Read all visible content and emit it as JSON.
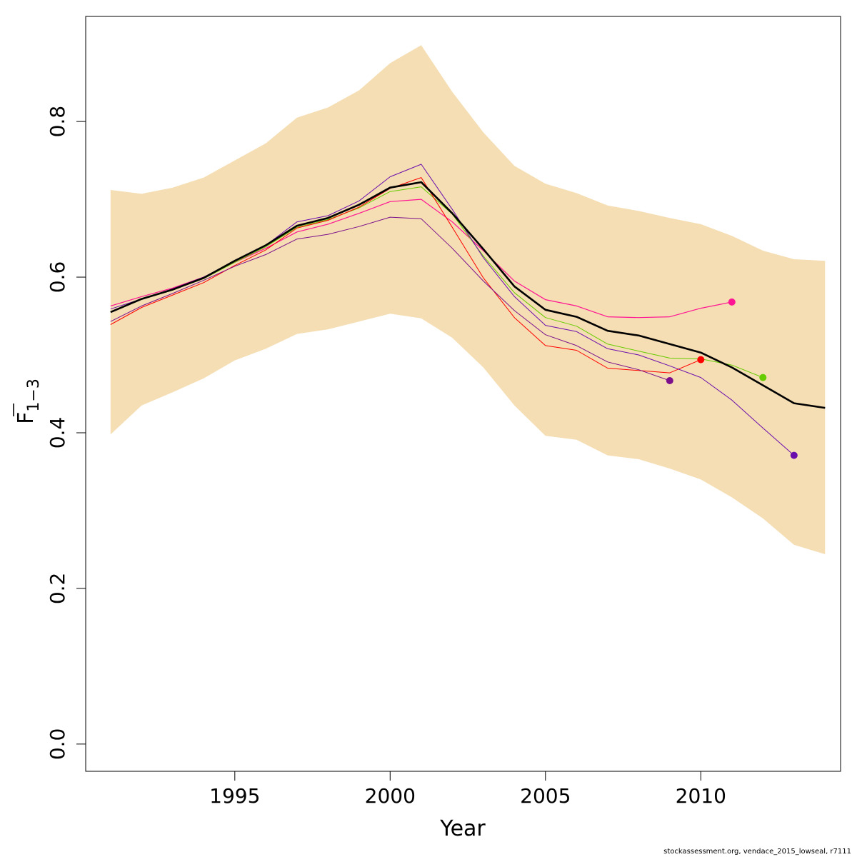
{
  "chart_data": {
    "type": "line",
    "title": "",
    "xlabel": "Year",
    "ylabel_main": "F",
    "ylabel_sub": "1−3",
    "xlim": [
      1990.2,
      2014.5
    ],
    "ylim": [
      -0.035,
      0.935
    ],
    "x_ticks": [
      1995,
      2000,
      2005,
      2010
    ],
    "x_tick_labels": [
      "1995",
      "2000",
      "2005",
      "2010"
    ],
    "y_ticks": [
      0.0,
      0.2,
      0.4,
      0.6,
      0.8
    ],
    "y_tick_labels": [
      "0.0",
      "0.2",
      "0.4",
      "0.6",
      "0.8"
    ],
    "grid": false,
    "band_color": "#f5deb3",
    "band": {
      "x": [
        1991,
        1992,
        1993,
        1994,
        1995,
        1996,
        1997,
        1998,
        1999,
        2000,
        2001,
        2002,
        2003,
        2004,
        2005,
        2006,
        2007,
        2008,
        2009,
        2010,
        2011,
        2012,
        2013,
        2014
      ],
      "lower": [
        0.398,
        0.435,
        0.452,
        0.47,
        0.493,
        0.508,
        0.527,
        0.533,
        0.543,
        0.553,
        0.547,
        0.522,
        0.484,
        0.435,
        0.396,
        0.391,
        0.371,
        0.366,
        0.354,
        0.34,
        0.317,
        0.29,
        0.256,
        0.244
      ],
      "upper": [
        0.712,
        0.707,
        0.715,
        0.728,
        0.75,
        0.772,
        0.805,
        0.818,
        0.84,
        0.875,
        0.898,
        0.838,
        0.786,
        0.743,
        0.72,
        0.708,
        0.692,
        0.685,
        0.676,
        0.668,
        0.653,
        0.634,
        0.623,
        0.621
      ]
    },
    "series": [
      {
        "color": "#000000",
        "width": 2.6,
        "endpoint": false,
        "x": [
          1991,
          1992,
          1993,
          1994,
          1995,
          1996,
          1997,
          1998,
          1999,
          2000,
          2001,
          2002,
          2003,
          2004,
          2005,
          2006,
          2007,
          2008,
          2009,
          2010,
          2011,
          2012,
          2013,
          2014
        ],
        "values": [
          0.555,
          0.572,
          0.584,
          0.599,
          0.621,
          0.641,
          0.666,
          0.676,
          0.693,
          0.715,
          0.722,
          0.682,
          0.636,
          0.588,
          0.558,
          0.549,
          0.531,
          0.525,
          0.514,
          0.503,
          0.484,
          0.461,
          0.438,
          0.432
        ]
      },
      {
        "color": "#ff1493",
        "width": 1.2,
        "endpoint": true,
        "x": [
          1991,
          1992,
          1993,
          1994,
          1995,
          1996,
          1997,
          1998,
          1999,
          2000,
          2001,
          2002,
          2003,
          2004,
          2005,
          2006,
          2007,
          2008,
          2009,
          2010,
          2011
        ],
        "values": [
          0.563,
          0.575,
          0.586,
          0.6,
          0.619,
          0.637,
          0.658,
          0.668,
          0.682,
          0.697,
          0.7,
          0.671,
          0.634,
          0.595,
          0.571,
          0.563,
          0.549,
          0.548,
          0.549,
          0.56,
          0.568
        ]
      },
      {
        "color": "#66cc00",
        "width": 1.0,
        "endpoint": true,
        "x": [
          1991,
          1992,
          1993,
          1994,
          1995,
          1996,
          1997,
          1998,
          1999,
          2000,
          2001,
          2002,
          2003,
          2004,
          2005,
          2006,
          2007,
          2008,
          2009,
          2010,
          2011,
          2012
        ],
        "values": [
          0.555,
          0.572,
          0.584,
          0.598,
          0.619,
          0.639,
          0.664,
          0.674,
          0.689,
          0.71,
          0.716,
          0.681,
          0.627,
          0.58,
          0.548,
          0.537,
          0.514,
          0.505,
          0.496,
          0.495,
          0.487,
          0.471
        ]
      },
      {
        "color": "#ff0000",
        "width": 1.0,
        "endpoint": true,
        "x": [
          1991,
          1992,
          1993,
          1994,
          1995,
          1996,
          1997,
          1998,
          1999,
          2000,
          2001,
          2002,
          2003,
          2004,
          2005,
          2006,
          2007,
          2008,
          2009,
          2010
        ],
        "values": [
          0.539,
          0.561,
          0.577,
          0.593,
          0.615,
          0.635,
          0.663,
          0.673,
          0.69,
          0.714,
          0.728,
          0.664,
          0.599,
          0.548,
          0.512,
          0.506,
          0.483,
          0.48,
          0.477,
          0.494
        ]
      },
      {
        "color": "#7b0f8c",
        "width": 1.0,
        "endpoint": true,
        "x": [
          1991,
          1992,
          1993,
          1994,
          1995,
          1996,
          1997,
          1998,
          1999,
          2000,
          2001,
          2002,
          2003,
          2004,
          2005,
          2006,
          2007,
          2008,
          2009
        ],
        "values": [
          0.543,
          0.563,
          0.579,
          0.596,
          0.614,
          0.629,
          0.649,
          0.655,
          0.665,
          0.677,
          0.675,
          0.637,
          0.595,
          0.557,
          0.526,
          0.512,
          0.491,
          0.481,
          0.467
        ]
      },
      {
        "color": "#6a0dad",
        "width": 1.0,
        "endpoint": true,
        "x": [
          1991,
          1992,
          1993,
          1994,
          1995,
          1996,
          1997,
          1998,
          1999,
          2000,
          2001,
          2002,
          2003,
          2004,
          2005,
          2006,
          2007,
          2008,
          2009,
          2010,
          2011,
          2012,
          2013
        ],
        "values": [
          0.559,
          0.572,
          0.585,
          0.6,
          0.621,
          0.641,
          0.671,
          0.679,
          0.698,
          0.729,
          0.745,
          0.687,
          0.625,
          0.575,
          0.538,
          0.53,
          0.508,
          0.5,
          0.486,
          0.471,
          0.442,
          0.406,
          0.371
        ]
      }
    ]
  },
  "footer": {
    "credit": "stockassessment.org, vendace_2015_lowseal, r7111"
  }
}
